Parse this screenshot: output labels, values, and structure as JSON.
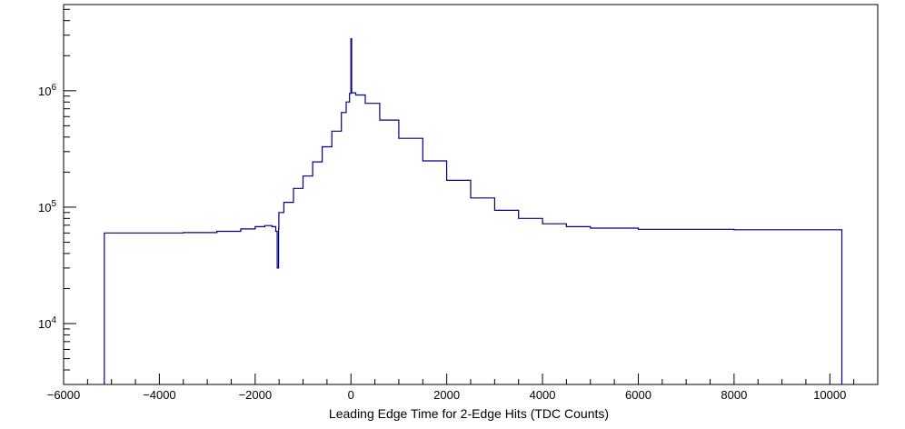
{
  "chart_data": {
    "type": "line",
    "title": "",
    "xlabel": "Leading Edge Time for 2-Edge Hits (TDC Counts)",
    "ylabel": "",
    "xlim": [
      -6000,
      11000
    ],
    "ylim": [
      3000,
      5500000
    ],
    "y_scale": "log",
    "grid": false,
    "legend": "none",
    "line_color": "#000080",
    "x_ticks": [
      {
        "value": -6000,
        "label": "−6000"
      },
      {
        "value": -4000,
        "label": "−4000"
      },
      {
        "value": -2000,
        "label": "−2000"
      },
      {
        "value": 0,
        "label": "0"
      },
      {
        "value": 2000,
        "label": "2000"
      },
      {
        "value": 4000,
        "label": "4000"
      },
      {
        "value": 6000,
        "label": "6000"
      },
      {
        "value": 8000,
        "label": "8000"
      },
      {
        "value": 10000,
        "label": "10000"
      }
    ],
    "y_ticks": [
      {
        "value": 10000,
        "base": "10",
        "exp": "4"
      },
      {
        "value": 100000,
        "base": "10",
        "exp": "5"
      },
      {
        "value": 1000000,
        "base": "10",
        "exp": "6"
      }
    ],
    "series": [
      {
        "values": [
          [
            -5150,
            3000
          ],
          [
            -5150,
            60000
          ],
          [
            -4500,
            60000
          ],
          [
            -3500,
            60500
          ],
          [
            -2800,
            62000
          ],
          [
            -2300,
            65000
          ],
          [
            -2000,
            68000
          ],
          [
            -1800,
            69500
          ],
          [
            -1650,
            68000
          ],
          [
            -1570,
            62000
          ],
          [
            -1540,
            30000
          ],
          [
            -1510,
            65000
          ],
          [
            -1505,
            90000
          ],
          [
            -1400,
            110000
          ],
          [
            -1200,
            145000
          ],
          [
            -1000,
            185000
          ],
          [
            -800,
            245000
          ],
          [
            -600,
            330000
          ],
          [
            -400,
            450000
          ],
          [
            -200,
            650000
          ],
          [
            -100,
            800000
          ],
          [
            -30,
            950000
          ],
          [
            0,
            970000
          ],
          [
            0,
            2800000
          ],
          [
            15,
            2800000
          ],
          [
            15,
            960000
          ],
          [
            100,
            920000
          ],
          [
            300,
            780000
          ],
          [
            600,
            560000
          ],
          [
            1000,
            390000
          ],
          [
            1500,
            250000
          ],
          [
            2000,
            170000
          ],
          [
            2500,
            120000
          ],
          [
            3000,
            94000
          ],
          [
            3500,
            80000
          ],
          [
            4000,
            72000
          ],
          [
            4500,
            68000
          ],
          [
            5000,
            66000
          ],
          [
            6000,
            64500
          ],
          [
            8000,
            64000
          ],
          [
            10250,
            64000
          ],
          [
            10250,
            3000
          ]
        ]
      }
    ]
  }
}
